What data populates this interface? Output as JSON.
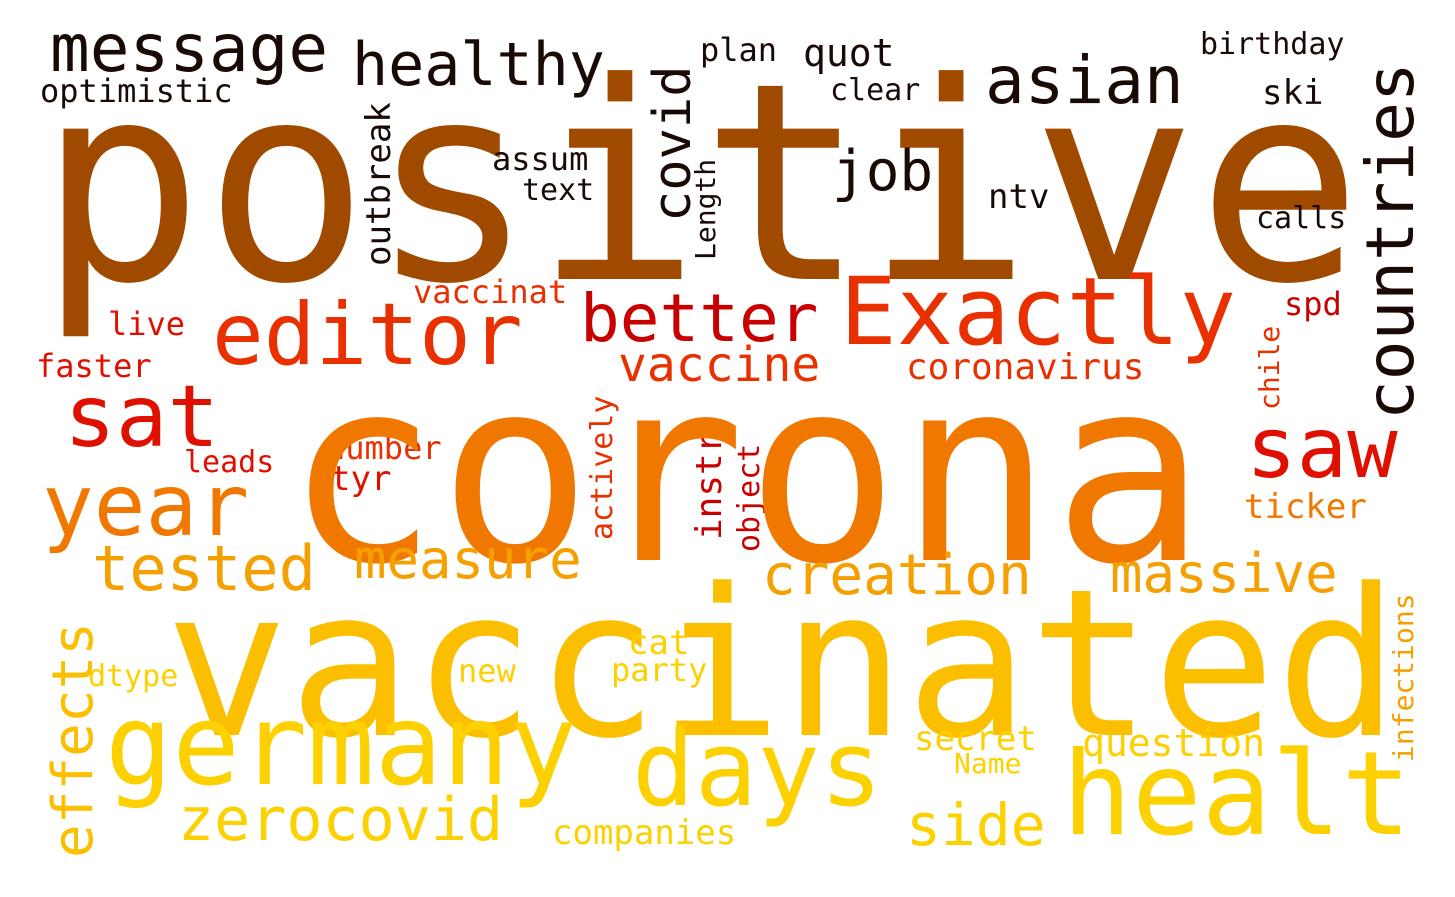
{
  "palette": {
    "near_black": "#1a0a05",
    "brown": "#a04a00",
    "dark_red": "#c80000",
    "red": "#e01000",
    "red_orange": "#e83000",
    "orange": "#f07800",
    "amber": "#f5a000",
    "gold": "#fbbf00",
    "yellow": "#fdd000"
  },
  "words": {
    "positive": "positive",
    "corona": "corona",
    "vaccinated": "vaccinated",
    "message": "message",
    "healthy": "healthy",
    "asian": "asian",
    "countries": "countries",
    "covid": "covid",
    "job": "job",
    "optimistic": "optimistic",
    "plan": "plan",
    "quot": "quot",
    "clear": "clear",
    "birthday": "birthday",
    "ski": "ski",
    "outbreak": "outbreak",
    "assum": "assum",
    "text": "text",
    "length": "Length",
    "ntv": "ntv",
    "calls": "calls",
    "editor": "editor",
    "exactly": "Exactly",
    "better": "better",
    "vaccinat": "vaccinat",
    "live": "live",
    "spd": "spd",
    "faster": "faster",
    "vaccine": "vaccine",
    "coronavirus": "coronavirus",
    "sat": "sat",
    "chile": "chile",
    "saw": "saw",
    "number": "number",
    "leads": "leads",
    "tyr": "tyr",
    "actively": "actively",
    "instr": "instr",
    "object": "object",
    "year": "year",
    "ticker": "ticker",
    "tested": "tested",
    "measure": "measure",
    "creation": "creation",
    "massive": "massive",
    "effects": "effects",
    "cat": "cat",
    "dtype": "dtype",
    "new": "new",
    "party": "party",
    "infections": "infections",
    "germany": "germany",
    "days": "days",
    "healt": "healt",
    "secret": "secret",
    "name": "Name",
    "question": "question",
    "zerocovid": "zerocovid",
    "side": "side",
    "companies": "companies"
  }
}
